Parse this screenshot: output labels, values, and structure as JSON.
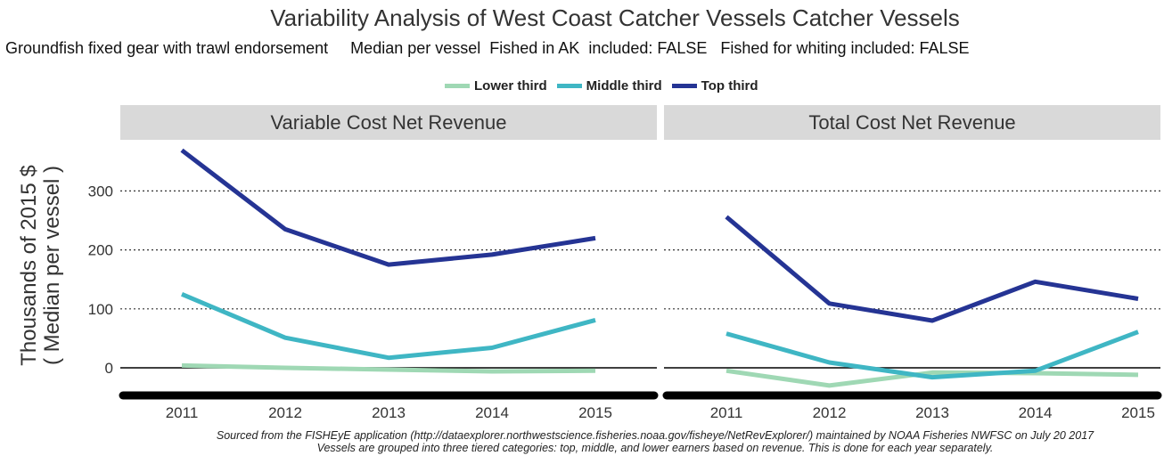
{
  "header": {
    "title": "Variability Analysis of West Coast Catcher Vessels Catcher Vessels",
    "subtitle": "Groundfish fixed gear with trawl endorsement     Median per vessel  Fished in AK  included: FALSE   Fished for whiting included: FALSE"
  },
  "axes": {
    "ylabel_line1": "Thousands of 2015 $",
    "ylabel_line2": "( Median per vessel )"
  },
  "caption": {
    "line1": "Sourced from the FISHEyE application (http://dataexplorer.northwestscience.fisheries.noaa.gov/fisheye/NetRevExplorer/) maintained by NOAA Fisheries NWFSC on  July 20 2017",
    "line2": "Vessels are grouped into three tiered categories: top, middle, and lower earners based on revenue. This is done for each year separately."
  },
  "chart_data": {
    "type": "line",
    "x": [
      "2011",
      "2012",
      "2013",
      "2014",
      "2015"
    ],
    "ylim": [
      -45,
      380
    ],
    "yticks": [
      0,
      100,
      200,
      300
    ],
    "grid": "horizontal dotted",
    "legend_position": "top",
    "legend": [
      {
        "name": "Lower third",
        "color": "#9fd8b4"
      },
      {
        "name": "Middle third",
        "color": "#3fb6c4"
      },
      {
        "name": "Top third",
        "color": "#253494"
      }
    ],
    "panels": [
      {
        "title": "Variable Cost Net Revenue",
        "series": [
          {
            "name": "Lower third",
            "values": [
              4,
              0,
              -3,
              -6,
              -5
            ]
          },
          {
            "name": "Middle third",
            "values": [
              125,
              51,
              17,
              34,
              81
            ]
          },
          {
            "name": "Top third",
            "values": [
              369,
              235,
              175,
              192,
              220
            ]
          }
        ]
      },
      {
        "title": "Total Cost Net Revenue",
        "series": [
          {
            "name": "Lower third",
            "values": [
              -5,
              -30,
              -8,
              -9,
              -12
            ]
          },
          {
            "name": "Middle third",
            "values": [
              58,
              9,
              -16,
              -5,
              61
            ]
          },
          {
            "name": "Top third",
            "values": [
              256,
              109,
              80,
              146,
              117
            ]
          }
        ]
      }
    ]
  }
}
